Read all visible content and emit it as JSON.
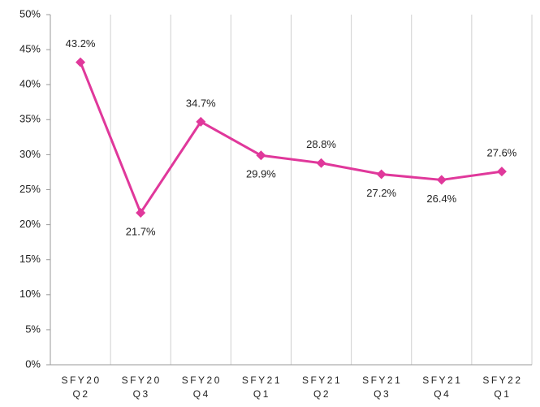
{
  "chart_data": {
    "type": "line",
    "categories": [
      [
        "SFY20",
        "Q2"
      ],
      [
        "SFY20",
        "Q3"
      ],
      [
        "SFY20",
        "Q4"
      ],
      [
        "SFY21",
        "Q1"
      ],
      [
        "SFY21",
        "Q2"
      ],
      [
        "SFY21",
        "Q3"
      ],
      [
        "SFY21",
        "Q4"
      ],
      [
        "SFY22",
        "Q1"
      ]
    ],
    "series": [
      {
        "color": "#e0389b",
        "values": [
          43.2,
          21.7,
          34.7,
          29.9,
          28.8,
          27.2,
          26.4,
          27.6
        ],
        "value_labels": [
          "43.2%",
          "21.7%",
          "34.7%",
          "29.9%",
          "28.8%",
          "27.2%",
          "26.4%",
          "27.6%"
        ]
      }
    ],
    "ylim": [
      0,
      50
    ],
    "yticks": [
      {
        "value": 0,
        "label": "0%"
      },
      {
        "value": 5,
        "label": "5%"
      },
      {
        "value": 10,
        "label": "10%"
      },
      {
        "value": 15,
        "label": "15%"
      },
      {
        "value": 20,
        "label": "20%"
      },
      {
        "value": 25,
        "label": "25%"
      },
      {
        "value": 30,
        "label": "30%"
      },
      {
        "value": 35,
        "label": "35%"
      },
      {
        "value": 40,
        "label": "40%"
      },
      {
        "value": 45,
        "label": "45%"
      },
      {
        "value": 50,
        "label": "50%"
      }
    ],
    "grid": true
  }
}
